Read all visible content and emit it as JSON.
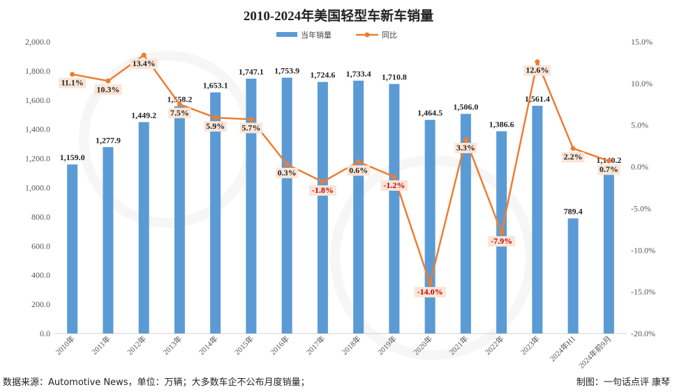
{
  "chart_data": {
    "type": "bar",
    "title": "2010-2024年美国轻型车新车销量",
    "categories": [
      "2010年",
      "2011年",
      "2012年",
      "2013年",
      "2014年",
      "2015年",
      "2016年",
      "2017年",
      "2018年",
      "2019年",
      "2020年",
      "2021年",
      "2022年",
      "2023年",
      "2024年H1",
      "2024年前9月"
    ],
    "series": [
      {
        "name": "当年销量",
        "type": "bar",
        "axis": "left",
        "color": "#5b9bd5",
        "values": [
          1159.0,
          1277.9,
          1449.2,
          1558.2,
          1653.1,
          1747.1,
          1753.9,
          1724.6,
          1733.4,
          1710.8,
          1464.5,
          1506.0,
          1386.6,
          1561.4,
          789.4,
          1140.2
        ],
        "labels": [
          "1,159.0",
          "1,277.9",
          "1,449.2",
          "1,558.2",
          "1,653.1",
          "1,747.1",
          "1,753.9",
          "1,724.6",
          "1,733.4",
          "1,710.8",
          "1,464.5",
          "1,506.0",
          "1,386.6",
          "1,561.4",
          "789.4",
          "1,140.2"
        ]
      },
      {
        "name": "同比",
        "type": "line",
        "axis": "right",
        "color": "#ed7d31",
        "values": [
          11.1,
          10.3,
          13.4,
          7.5,
          5.9,
          5.7,
          0.3,
          -1.8,
          0.6,
          -1.2,
          -14.0,
          3.3,
          -7.9,
          12.6,
          2.2,
          0.7
        ],
        "labels": [
          "11.1%",
          "10.3%",
          "13.4%",
          "7.5%",
          "5.9%",
          "5.7%",
          "0.3%",
          "-1.8%",
          "0.6%",
          "-1.2%",
          "-14.0%",
          "3.3%",
          "-7.9%",
          "12.6%",
          "2.2%",
          "0.7%"
        ]
      }
    ],
    "y_left": {
      "range": [
        0,
        2000
      ],
      "ticks": [
        0,
        200,
        400,
        600,
        800,
        1000,
        1200,
        1400,
        1600,
        1800,
        2000
      ],
      "tick_labels": [
        "0.0",
        "200.0",
        "400.0",
        "600.0",
        "800.0",
        "1,000.0",
        "1,200.0",
        "1,400.0",
        "1,600.0",
        "1,800.0",
        "2,000.0"
      ]
    },
    "y_right": {
      "range": [
        -20,
        15
      ],
      "ticks": [
        -20,
        -15,
        -10,
        -5,
        0,
        5,
        10,
        15
      ],
      "tick_labels": [
        "-20.0%",
        "-15.0%",
        "-10.0%",
        "-5.0%",
        "0.0%",
        "5.0%",
        "10.0%",
        "15.0%"
      ]
    },
    "grid": false,
    "legend": "top-center",
    "label_colors": {
      "positive": "#222222",
      "negative": "#c00000",
      "label_bg": "#fbe5d6"
    }
  },
  "footer": {
    "source": "数据来源：Automotive News，单位：万辆；大多数车企不公布月度销量；",
    "credit": "制图：一句话点评 康琴"
  }
}
